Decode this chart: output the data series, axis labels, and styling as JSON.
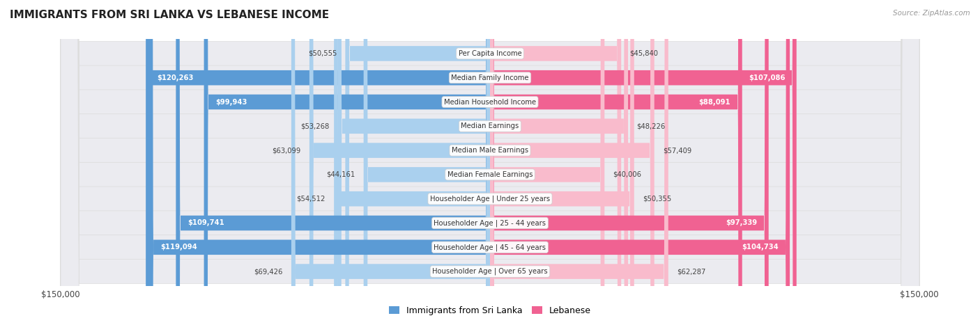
{
  "title": "IMMIGRANTS FROM SRI LANKA VS LEBANESE INCOME",
  "source": "Source: ZipAtlas.com",
  "categories": [
    "Per Capita Income",
    "Median Family Income",
    "Median Household Income",
    "Median Earnings",
    "Median Male Earnings",
    "Median Female Earnings",
    "Householder Age | Under 25 years",
    "Householder Age | 25 - 44 years",
    "Householder Age | 45 - 64 years",
    "Householder Age | Over 65 years"
  ],
  "sri_lanka_values": [
    50555,
    120263,
    99943,
    53268,
    63099,
    44161,
    54512,
    109741,
    119094,
    69426
  ],
  "lebanese_values": [
    45840,
    107086,
    88091,
    48226,
    57409,
    40006,
    50355,
    97339,
    104734,
    62287
  ],
  "max_value": 150000,
  "sri_lanka_color_dark": "#5B9BD5",
  "sri_lanka_color_light": "#AAD0EE",
  "lebanese_color_dark": "#F06292",
  "lebanese_color_light": "#F9BBCC",
  "threshold": 75000,
  "bar_height": 0.62,
  "legend_sri_lanka": "Immigrants from Sri Lanka",
  "legend_lebanese": "Lebanese"
}
